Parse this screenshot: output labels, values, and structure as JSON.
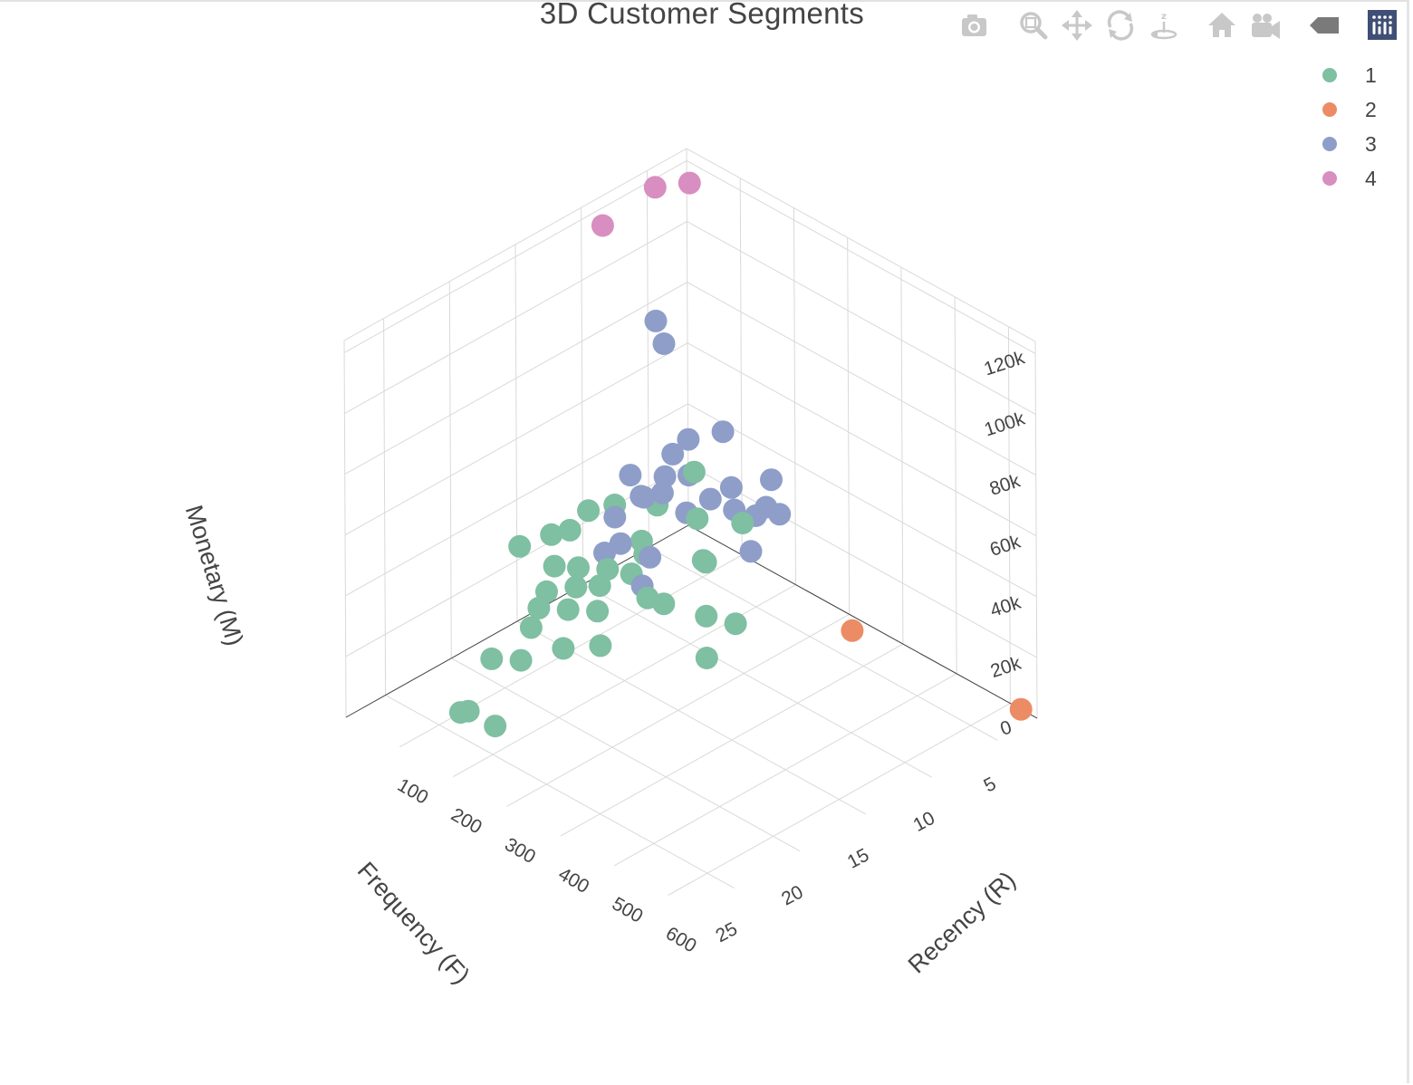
{
  "chart_data": {
    "type": "scatter",
    "title": "3D Customer Segments",
    "axes": {
      "x": {
        "label": "Recency (R)",
        "ticks": [
          "100",
          "200",
          "300",
          "400",
          "500",
          "600"
        ],
        "range": [
          0,
          650
        ]
      },
      "y": {
        "label": "Frequency (F)",
        "ticks": [
          "5",
          "10",
          "15",
          "20",
          "25"
        ],
        "range": [
          2,
          28
        ]
      },
      "z": {
        "label": "Monetary (M)",
        "ticks": [
          "0",
          "20k",
          "40k",
          "60k",
          "80k",
          "100k",
          "120k"
        ],
        "range": [
          0,
          124000
        ]
      }
    },
    "grid": true,
    "legend_position": "top-right",
    "series": [
      {
        "name": "1",
        "color": "#7fbfa2",
        "points": [
          {
            "R": 140,
            "F": 25,
            "M": 8000
          },
          {
            "R": 130,
            "F": 24,
            "M": 5000
          },
          {
            "R": 180,
            "F": 24,
            "M": 5000
          },
          {
            "R": 100,
            "F": 21,
            "M": 12000
          },
          {
            "R": 130,
            "F": 20,
            "M": 12000
          },
          {
            "R": 100,
            "F": 18,
            "M": 15000
          },
          {
            "R": 90,
            "F": 17,
            "M": 18000
          },
          {
            "R": 80,
            "F": 16,
            "M": 20000
          },
          {
            "R": 120,
            "F": 16,
            "M": 18000
          },
          {
            "R": 110,
            "F": 15,
            "M": 22000
          },
          {
            "R": 70,
            "F": 15,
            "M": 25000
          },
          {
            "R": 150,
            "F": 15,
            "M": 18000
          },
          {
            "R": 90,
            "F": 14,
            "M": 24000
          },
          {
            "R": 130,
            "F": 14,
            "M": 22000
          },
          {
            "R": 140,
            "F": 12,
            "M": 22000
          },
          {
            "R": 170,
            "F": 12,
            "M": 17000
          },
          {
            "R": 50,
            "F": 13,
            "M": 30000
          },
          {
            "R": 60,
            "F": 12,
            "M": 35000
          },
          {
            "R": 110,
            "F": 10,
            "M": 25000
          },
          {
            "R": 200,
            "F": 12,
            "M": 18000
          },
          {
            "R": 180,
            "F": 8,
            "M": 20000
          },
          {
            "R": 230,
            "F": 10,
            "M": 12000
          },
          {
            "R": 60,
            "F": 10,
            "M": 32000
          },
          {
            "R": 90,
            "F": 8,
            "M": 30000
          },
          {
            "R": 260,
            "F": 9,
            "M": 10000
          },
          {
            "R": 140,
            "F": 7,
            "M": 28000
          },
          {
            "R": 30,
            "F": 16,
            "M": 30000
          },
          {
            "R": 40,
            "F": 14,
            "M": 30000
          },
          {
            "R": 160,
            "F": 18,
            "M": 14000
          },
          {
            "R": 120,
            "F": 13,
            "M": 24000
          },
          {
            "R": 200,
            "F": 6,
            "M": 30000
          },
          {
            "R": 280,
            "F": 12,
            "M": 8000
          },
          {
            "R": 110,
            "F": 6,
            "M": 38000
          },
          {
            "R": 140,
            "F": 11,
            "M": 26000
          },
          {
            "R": 180,
            "F": 16,
            "M": 12000
          },
          {
            "R": 200,
            "F": 9,
            "M": 25000
          }
        ]
      },
      {
        "name": "2",
        "color": "#ec8c64",
        "points": [
          {
            "R": 620,
            "F": 2,
            "M": 0
          },
          {
            "R": 330,
            "F": 3,
            "M": 0
          }
        ]
      },
      {
        "name": "3",
        "color": "#8e9ec8",
        "points": [
          {
            "R": 180,
            "F": 3,
            "M": 35000
          },
          {
            "R": 170,
            "F": 3,
            "M": 25000
          },
          {
            "R": 220,
            "F": 4,
            "M": 30000
          },
          {
            "R": 200,
            "F": 5,
            "M": 30000
          },
          {
            "R": 160,
            "F": 5,
            "M": 28000
          },
          {
            "R": 140,
            "F": 6,
            "M": 32000
          },
          {
            "R": 240,
            "F": 7,
            "M": 27000
          },
          {
            "R": 120,
            "F": 7,
            "M": 28000
          },
          {
            "R": 100,
            "F": 6,
            "M": 36000
          },
          {
            "R": 80,
            "F": 7,
            "M": 36000
          },
          {
            "R": 70,
            "F": 6,
            "M": 40000
          },
          {
            "R": 100,
            "F": 8,
            "M": 35000
          },
          {
            "R": 90,
            "F": 9,
            "M": 35000
          },
          {
            "R": 60,
            "F": 10,
            "M": 28000
          },
          {
            "R": 40,
            "F": 8,
            "M": 35000
          },
          {
            "R": 30,
            "F": 5,
            "M": 70000
          },
          {
            "R": 15,
            "F": 5,
            "M": 76000
          },
          {
            "R": 90,
            "F": 3,
            "M": 42000
          },
          {
            "R": 50,
            "F": 4,
            "M": 38000
          },
          {
            "R": 130,
            "F": 4,
            "M": 30000
          },
          {
            "R": 60,
            "F": 8,
            "M": 30000
          },
          {
            "R": 150,
            "F": 11,
            "M": 26000
          },
          {
            "R": 120,
            "F": 12,
            "M": 30000
          },
          {
            "R": 90,
            "F": 12,
            "M": 24000
          },
          {
            "R": 160,
            "F": 12,
            "M": 20000
          }
        ]
      },
      {
        "name": "4",
        "color": "#d88ec0",
        "points": [
          {
            "R": 15,
            "F": 5,
            "M": 120000
          },
          {
            "R": 30,
            "F": 3,
            "M": 118000
          },
          {
            "R": 40,
            "F": 10,
            "M": 122000
          }
        ]
      }
    ]
  },
  "legend": [
    {
      "label": "1",
      "color": "#7fbfa2"
    },
    {
      "label": "2",
      "color": "#ec8c64"
    },
    {
      "label": "3",
      "color": "#8e9ec8"
    },
    {
      "label": "4",
      "color": "#d88ec0"
    }
  ],
  "modebar": {
    "buttons": [
      "camera-icon",
      "zoom-icon",
      "pan-icon",
      "orbit-rotation-icon",
      "turntable-rotation-icon",
      "reset-camera-icon",
      "last-saved-view-icon",
      "hover-spike-icon",
      "plotly-logo-icon"
    ]
  }
}
